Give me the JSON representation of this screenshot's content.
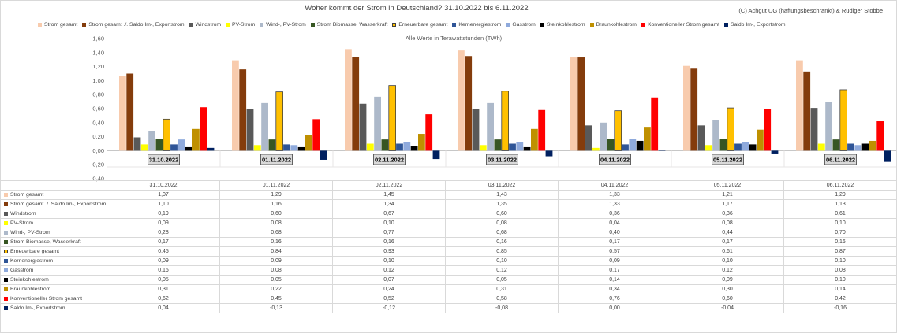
{
  "chart_data": {
    "type": "bar",
    "title": "Woher kommt der Strom in Deutschland? 31.10.2022 bis 6.11.2022",
    "copyright": "(C) Achgut UG (haftungsbeschränkt) & Rüdiger Stobbe",
    "subtitle": "Alle Werte in Terawattstunden (TWh)",
    "categories": [
      "31.10.2022",
      "01.11.2022",
      "02.11.2022",
      "03.11.2022",
      "04.11.2022",
      "05.11.2022",
      "06.11.2022"
    ],
    "ylim": [
      -0.4,
      1.6
    ],
    "y_tick_labels": [
      "1,60",
      "1,40",
      "1,20",
      "1,00",
      "0,80",
      "0,60",
      "0,40",
      "0,20",
      "0,00",
      "-0,20",
      "-0,40"
    ],
    "grid": false,
    "legend_position": "top",
    "show_data_table": true,
    "series": [
      {
        "name": "Strom gesamt",
        "color": "#f8cbad",
        "values": [
          1.07,
          1.29,
          1.45,
          1.43,
          1.33,
          1.21,
          1.29
        ]
      },
      {
        "name": "Strom gesamt ./. Saldo Im-, Exportstrom",
        "color": "#843c0c",
        "values": [
          1.1,
          1.16,
          1.34,
          1.35,
          1.33,
          1.17,
          1.13
        ]
      },
      {
        "name": "Windstrom",
        "color": "#595959",
        "values": [
          0.19,
          0.6,
          0.67,
          0.6,
          0.36,
          0.36,
          0.61
        ]
      },
      {
        "name": "PV-Strom",
        "color": "#ffff00",
        "values": [
          0.09,
          0.08,
          0.1,
          0.08,
          0.04,
          0.08,
          0.1
        ]
      },
      {
        "name": "Wind-, PV-Strom",
        "color": "#adb9ca",
        "values": [
          0.28,
          0.68,
          0.77,
          0.68,
          0.4,
          0.44,
          0.7
        ]
      },
      {
        "name": "Strom Biomasse, Wasserkraft",
        "color": "#375623",
        "values": [
          0.17,
          0.16,
          0.16,
          0.16,
          0.17,
          0.17,
          0.16
        ]
      },
      {
        "name": "Erneuerbare gesamt",
        "color": "#ffc000",
        "outline_color": "#404040",
        "values": [
          0.45,
          0.84,
          0.93,
          0.85,
          0.57,
          0.61,
          0.87
        ]
      },
      {
        "name": "Kernenergiestrom",
        "color": "#2f5597",
        "values": [
          0.09,
          0.09,
          0.1,
          0.1,
          0.09,
          0.1,
          0.1
        ]
      },
      {
        "name": "Gasstrom",
        "color": "#8faadc",
        "values": [
          0.16,
          0.08,
          0.12,
          0.12,
          0.17,
          0.12,
          0.08
        ]
      },
      {
        "name": "Steinkohlestrom",
        "color": "#000000",
        "values": [
          0.05,
          0.05,
          0.07,
          0.05,
          0.14,
          0.09,
          0.1
        ]
      },
      {
        "name": "Braunkohlestrom",
        "color": "#bf9000",
        "values": [
          0.31,
          0.22,
          0.24,
          0.31,
          0.34,
          0.3,
          0.14
        ]
      },
      {
        "name": "Konventioneller Strom gesamt",
        "color": "#ff0000",
        "values": [
          0.62,
          0.45,
          0.52,
          0.58,
          0.76,
          0.6,
          0.42
        ]
      },
      {
        "name": "Saldo Im-, Exportstrom",
        "color": "#002060",
        "values": [
          0.04,
          -0.13,
          -0.12,
          -0.08,
          0.0,
          -0.04,
          -0.16
        ]
      }
    ]
  }
}
